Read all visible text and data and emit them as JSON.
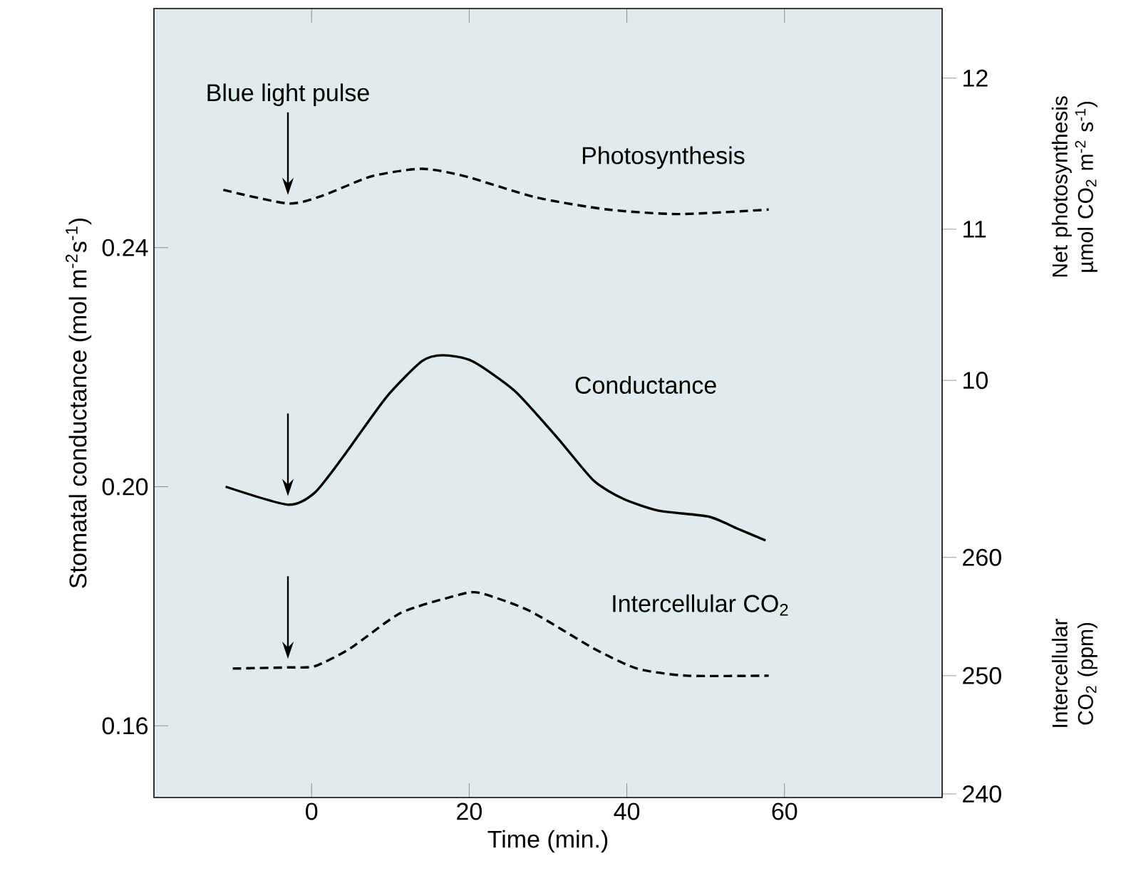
{
  "chart_data": {
    "type": "line",
    "xlabel": "Time (min.)",
    "ylabel": "Stomatal conductance (mol m$^{-2}$s$^{-1}$)",
    "y2label": "Net photosynthesis µmol CO$_{2}$ m$^{-2}$ s$^{-1}$)",
    "y3label": "Intercellular CO$_{2}$ (ppm)",
    "xlim": [
      -20,
      80
    ],
    "xticks": [
      0,
      20,
      40,
      60
    ],
    "ylim": [
      0.148,
      0.28
    ],
    "yticks": [
      0.16,
      {
        "value": 0.2,
        "label": "0.20"
      },
      0.24
    ],
    "y2lim": [
      7.24,
      12.46
    ],
    "y2ticks": [
      10,
      11,
      12
    ],
    "y3lim": [
      239.7,
      306.4
    ],
    "y3ticks": [
      240,
      250,
      260
    ],
    "annotations": [
      {
        "text": "Blue light pulse",
        "x": -3
      }
    ],
    "marker": "none",
    "series": [
      {
        "name": "Photosynthesis",
        "color": "#000000",
        "axis": "y2",
        "line_style": "dashed",
        "x": [
          -11.2,
          -3,
          1.3,
          7.6,
          14,
          19.5,
          28.5,
          37.6,
          46.7,
          58
        ],
        "values": [
          11.26,
          11.17,
          11.22,
          11.35,
          11.4,
          11.35,
          11.21,
          11.13,
          11.1,
          11.13
        ]
      },
      {
        "name": "Conductance",
        "color": "#000000",
        "axis": "y",
        "line_style": "solid",
        "x": [
          -10.9,
          -3,
          0.4,
          4,
          9.5,
          14,
          16.7,
          20.4,
          25.8,
          31.3,
          35.8,
          39.5,
          44,
          50.4,
          54,
          57.6
        ],
        "values": [
          0.2,
          0.197,
          0.199,
          0.205,
          0.215,
          0.221,
          0.222,
          0.221,
          0.216,
          0.208,
          0.201,
          0.198,
          0.196,
          0.195,
          0.193,
          0.191
        ]
      },
      {
        "name": "Intercellular CO$_{2}$",
        "color": "#000000",
        "axis": "y3",
        "line_style": "dashed",
        "x": [
          -10,
          -3,
          0.4,
          4.9,
          11.3,
          18.5,
          21.3,
          27.6,
          35.8,
          41.3,
          47.6,
          58
        ],
        "values": [
          250.6,
          250.7,
          250.8,
          252.3,
          255.3,
          256.8,
          257,
          255.5,
          252.3,
          250.6,
          250,
          250
        ]
      }
    ]
  }
}
